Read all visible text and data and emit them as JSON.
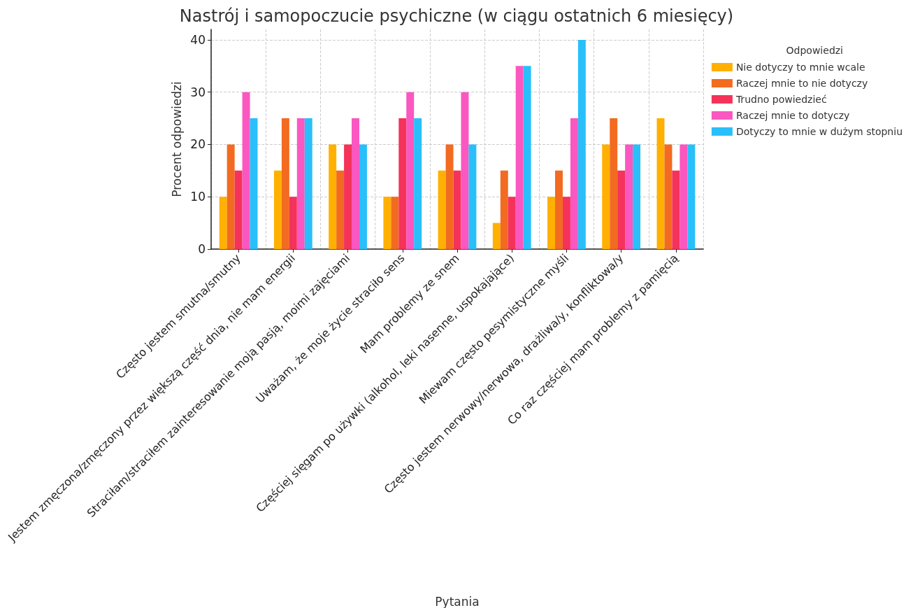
{
  "chart_data": {
    "type": "bar",
    "title": "Nastrój i samopoczucie psychiczne (w ciągu ostatnich 6 miesięcy)",
    "xlabel": "Pytania",
    "ylabel": "Procent odpowiedzi",
    "legend_title": "Odpowiedzi",
    "categories": [
      "Często jestem smutna/smutny",
      "Jestem zmęczona/zmęczony przez większą część dnia, nie mam energii",
      "Straciłam/straciłem zainteresowanie moją pasją, moimi zajęciami",
      "Uważam, że moje życie straciło sens",
      "Mam problemy ze snem",
      "Częściej sięgam po używki (alkohol, leki nasenne, uspokajające)",
      "Miewam często pesymistyczne myśli",
      "Często jestem nerwowy/nerwowa, drażliwa/y, konfliktowa/y",
      "Co raz częściej mam problemy z pamięcią"
    ],
    "series": [
      {
        "name": "Nie dotyczy to mnie wcale",
        "color": "#ffb000",
        "values": [
          10,
          15,
          20,
          10,
          15,
          5,
          10,
          20,
          25
        ]
      },
      {
        "name": "Raczej mnie to nie dotyczy",
        "color": "#f26b21",
        "values": [
          20,
          25,
          15,
          10,
          20,
          15,
          15,
          25,
          20
        ]
      },
      {
        "name": "Trudno powiedzieć",
        "color": "#f5325a",
        "values": [
          15,
          10,
          20,
          25,
          15,
          10,
          10,
          15,
          15
        ]
      },
      {
        "name": "Raczej mnie to dotyczy",
        "color": "#fa57c1",
        "values": [
          30,
          25,
          25,
          30,
          30,
          35,
          25,
          20,
          20
        ]
      },
      {
        "name": "Dotyczy to mnie w dużym stopniu",
        "color": "#29bffa",
        "values": [
          25,
          25,
          20,
          25,
          20,
          35,
          40,
          20,
          20
        ]
      }
    ],
    "ylim": [
      0,
      42
    ],
    "yticks": [
      0,
      10,
      20,
      30,
      40
    ],
    "grid": true,
    "legend": "right"
  }
}
